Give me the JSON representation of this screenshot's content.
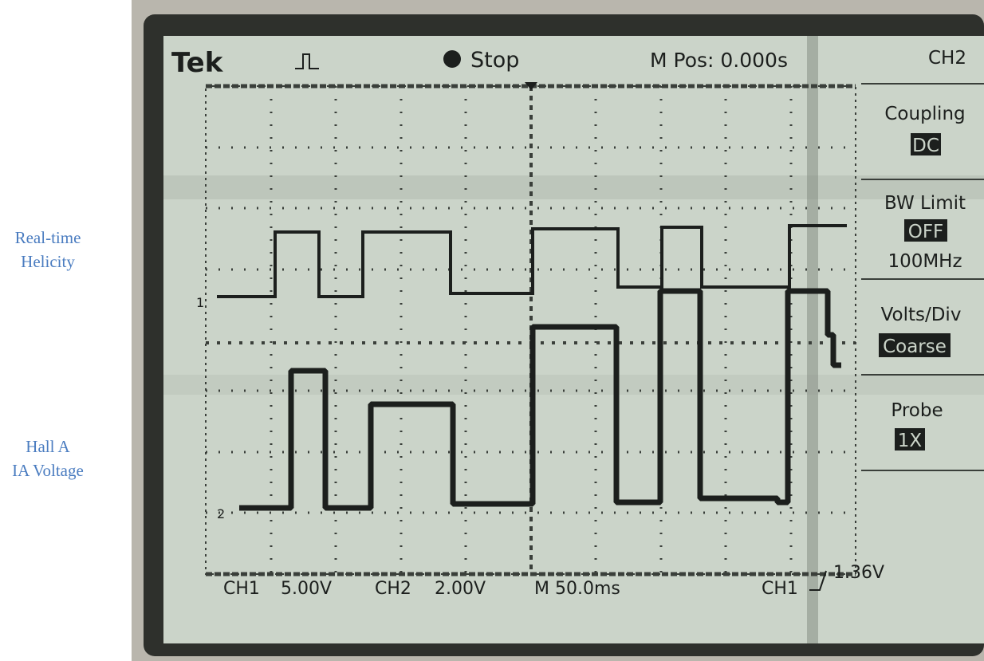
{
  "labels": {
    "helicity": [
      "Real-time",
      "Helicity"
    ],
    "voltage": [
      "Hall A",
      "IA Voltage"
    ]
  },
  "scope": {
    "header": {
      "brand": "Tek",
      "state": "Stop",
      "position": "M Pos: 0.000s"
    },
    "menu": {
      "channel": "CH2",
      "items": [
        {
          "label": "Coupling",
          "value": "DC"
        },
        {
          "label": "BW Limit",
          "value": "OFF",
          "extra": "100MHz"
        },
        {
          "label": "Volts/Div",
          "value": "Coarse"
        },
        {
          "label": "Probe",
          "value": "1X"
        }
      ]
    },
    "markers": [
      "1",
      "2"
    ],
    "footer": {
      "ch1": "CH1",
      "ch1_scale": "5.00V",
      "ch2": "CH2",
      "ch2_scale": "2.00V",
      "time": "M 50.0ms",
      "trigger_ch": "CH1",
      "trigger_level": "1.36V"
    }
  }
}
